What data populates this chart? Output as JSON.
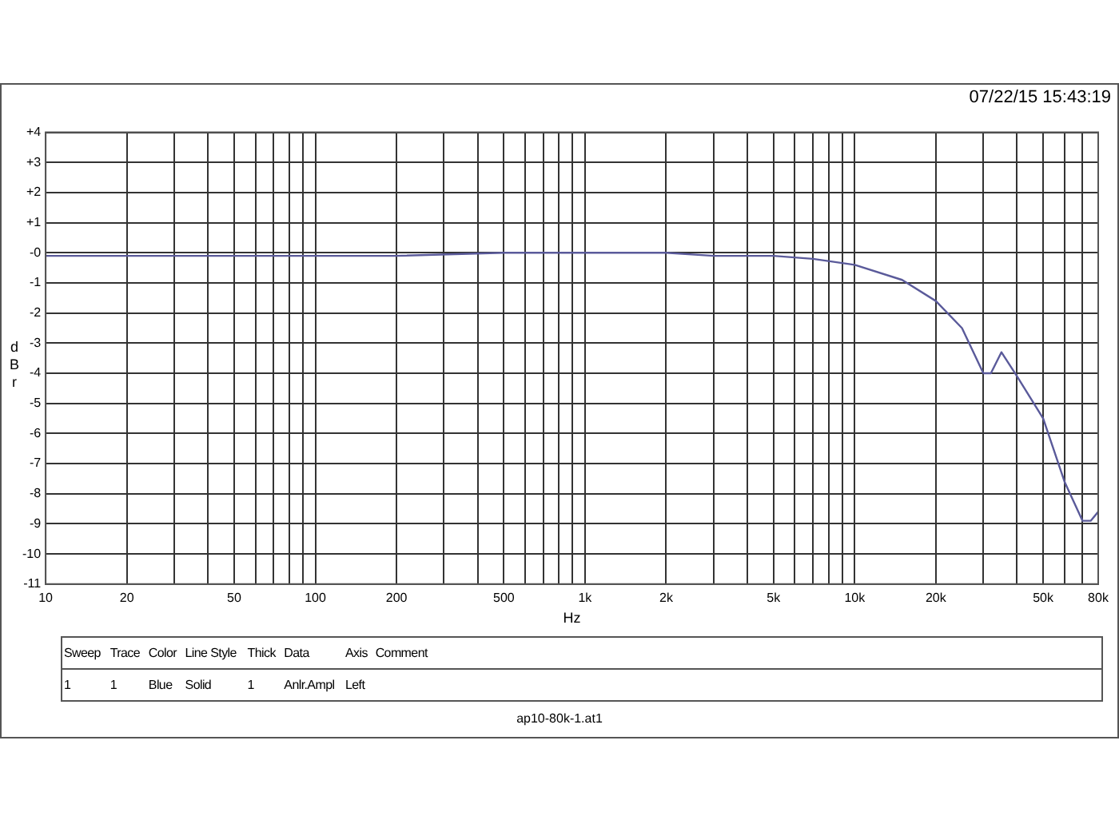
{
  "chart_data": {
    "type": "line",
    "xlabel": "Hz",
    "ylabel": "dBr",
    "log": "x",
    "grid": true,
    "marker": "none",
    "line_style": "solid",
    "xlim": [
      10,
      80000
    ],
    "xticks": [
      10,
      20,
      {
        "value": 30,
        "label": null
      },
      {
        "value": 40,
        "label": null
      },
      50,
      {
        "value": 60,
        "label": null
      },
      {
        "value": 70,
        "label": null
      },
      {
        "value": 80,
        "label": null
      },
      {
        "value": 90,
        "label": null
      },
      100,
      200,
      {
        "value": 300,
        "label": null
      },
      {
        "value": 400,
        "label": null
      },
      500,
      {
        "value": 600,
        "label": null
      },
      {
        "value": 700,
        "label": null
      },
      {
        "value": 800,
        "label": null
      },
      {
        "value": 900,
        "label": null
      },
      {
        "value": 1000,
        "label": "1k"
      },
      {
        "value": 2000,
        "label": "2k"
      },
      {
        "value": 3000,
        "label": null
      },
      {
        "value": 4000,
        "label": null
      },
      {
        "value": 5000,
        "label": "5k"
      },
      {
        "value": 6000,
        "label": null
      },
      {
        "value": 7000,
        "label": null
      },
      {
        "value": 8000,
        "label": null
      },
      {
        "value": 9000,
        "label": null
      },
      {
        "value": 10000,
        "label": "10k"
      },
      {
        "value": 20000,
        "label": "20k"
      },
      {
        "value": 30000,
        "label": null
      },
      {
        "value": 40000,
        "label": null
      },
      {
        "value": 50000,
        "label": "50k"
      },
      {
        "value": 60000,
        "label": null
      },
      {
        "value": 70000,
        "label": null
      },
      {
        "value": 80000,
        "label": "80k"
      }
    ],
    "ylim": [
      -11,
      4
    ],
    "yticks": [
      {
        "value": 4,
        "label": "+4"
      },
      {
        "value": 3,
        "label": "+3"
      },
      {
        "value": 2,
        "label": "+2"
      },
      {
        "value": 1,
        "label": "+1"
      },
      {
        "value": 0,
        "label": "-0"
      },
      -1,
      -2,
      -3,
      -4,
      -5,
      -6,
      -7,
      -8,
      -9,
      -10,
      -11
    ],
    "series": [
      {
        "color": "#5a5a9a",
        "x": [
          10,
          20,
          50,
          100,
          200,
          500,
          1000,
          2000,
          3000,
          5000,
          7000,
          10000,
          15000,
          20000,
          25000,
          30000,
          32000,
          35000,
          40000,
          50000,
          60000,
          70000,
          75000,
          80000
        ],
        "values": [
          -0.1,
          -0.1,
          -0.1,
          -0.1,
          -0.1,
          0,
          0,
          0,
          -0.1,
          -0.1,
          -0.2,
          -0.4,
          -0.9,
          -1.6,
          -2.5,
          -4,
          -4,
          -3.3,
          -4.1,
          -5.5,
          -7.6,
          -8.9,
          -8.9,
          -8.6
        ]
      }
    ],
    "annotations": [
      "07/22/15 15:43:19",
      "ap10-80k-1.at1",
      "Sweep",
      "Trace",
      "Color",
      "Line Style",
      "Thick",
      "Data",
      "Axis",
      "Comment",
      "1",
      "1",
      "Blue",
      "Solid",
      "1",
      "Anlr.Ampl",
      "Left"
    ]
  }
}
